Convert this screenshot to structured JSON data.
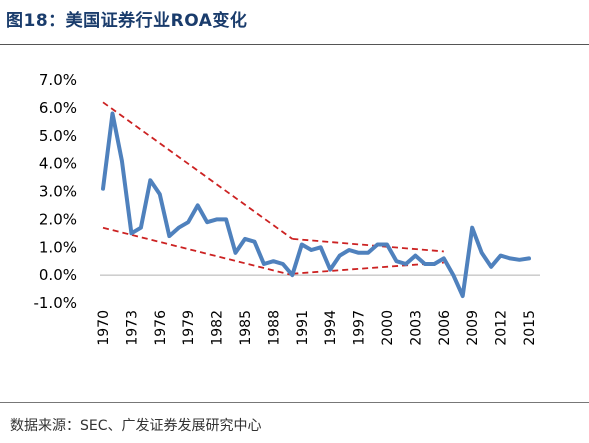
{
  "figure": {
    "title": "图18：美国证券行业ROA变化",
    "source": "数据来源：SEC、广发证券发展研究中心"
  },
  "colors": {
    "title": "#1a3c6c",
    "line": "#4f81bd",
    "trend": "#cc2222",
    "axis": "#b0b0b0",
    "text": "#000000"
  },
  "chart_data": {
    "type": "line",
    "title": "",
    "xlabel": "",
    "ylabel": "",
    "ylim": [
      -1.0,
      7.0
    ],
    "yticks": [
      "7.0%",
      "6.0%",
      "5.0%",
      "4.0%",
      "3.0%",
      "2.0%",
      "1.0%",
      "0.0%",
      "-1.0%"
    ],
    "ytick_values": [
      7,
      6,
      5,
      4,
      3,
      2,
      1,
      0,
      -1
    ],
    "xticks": [
      "1970",
      "1973",
      "1976",
      "1979",
      "1982",
      "1985",
      "1988",
      "1991",
      "1994",
      "1997",
      "2000",
      "2003",
      "2006",
      "2009",
      "2012",
      "2015"
    ],
    "grid": false,
    "legend": "none",
    "series": [
      {
        "x": [
          1970,
          1971,
          1972,
          1973,
          1974,
          1975,
          1976,
          1977,
          1978,
          1979,
          1980,
          1981,
          1982,
          1983,
          1984,
          1985,
          1986,
          1987,
          1988,
          1989,
          1990,
          1991,
          1992,
          1993,
          1994,
          1995,
          1996,
          1997,
          1998,
          1999,
          2000,
          2001,
          2002,
          2003,
          2004,
          2005,
          2006,
          2007,
          2008,
          2009,
          2010,
          2011,
          2012,
          2013,
          2014,
          2015
        ],
        "values": [
          3.1,
          5.8,
          4.1,
          1.5,
          1.7,
          3.4,
          2.9,
          1.4,
          1.7,
          1.9,
          2.5,
          1.9,
          2.0,
          2.0,
          0.8,
          1.3,
          1.2,
          0.4,
          0.5,
          0.4,
          0.0,
          1.1,
          0.9,
          1.0,
          0.2,
          0.7,
          0.9,
          0.8,
          0.8,
          1.1,
          1.1,
          0.5,
          0.4,
          0.7,
          0.4,
          0.4,
          0.6,
          0.0,
          -0.75,
          1.7,
          0.8,
          0.3,
          0.7,
          0.6,
          0.55,
          0.6
        ]
      }
    ],
    "trend_lines": [
      {
        "x": [
          1970,
          1990
        ],
        "values": [
          6.2,
          1.3
        ]
      },
      {
        "x": [
          1970,
          1990
        ],
        "values": [
          1.7,
          0.0
        ]
      },
      {
        "x": [
          1990,
          2006
        ],
        "values": [
          1.3,
          0.85
        ]
      },
      {
        "x": [
          1990,
          2006
        ],
        "values": [
          0.05,
          0.45
        ]
      }
    ]
  }
}
